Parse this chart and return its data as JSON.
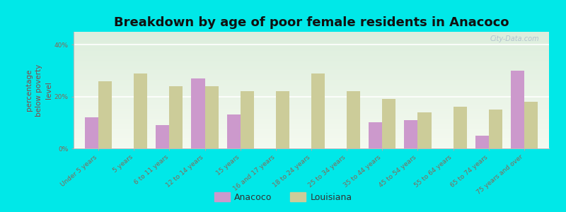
{
  "title": "Breakdown by age of poor female residents in Anacoco",
  "ylabel": "percentage\nbelow poverty\nlevel",
  "categories": [
    "Under 5 years",
    "5 years",
    "6 to 11 years",
    "12 to 14 years",
    "15 years",
    "16 and 17 years",
    "18 to 24 years",
    "25 to 34 years",
    "35 to 44 years",
    "45 to 54 years",
    "55 to 64 years",
    "65 to 74 years",
    "75 years and over"
  ],
  "anacoco_values": [
    12,
    0,
    9,
    27,
    13,
    0,
    0,
    0,
    10,
    11,
    0,
    5,
    30
  ],
  "louisiana_values": [
    26,
    29,
    24,
    24,
    22,
    22,
    29,
    22,
    19,
    14,
    16,
    15,
    18
  ],
  "anacoco_color": "#cc99cc",
  "louisiana_color": "#cccc99",
  "outer_background": "#00e8e8",
  "plot_bg_top": "#ddeedd",
  "plot_bg_bottom": "#f5faf0",
  "ylim": [
    0,
    45
  ],
  "ytick_vals": [
    0,
    20,
    40
  ],
  "ytick_labels": [
    "0%",
    "20%",
    "40%"
  ],
  "bar_width": 0.38,
  "title_fontsize": 13,
  "ylabel_fontsize": 7.5,
  "ylabel_color": "#884444",
  "tick_fontsize": 6.5,
  "tick_color": "#886655",
  "legend_fontsize": 9,
  "watermark": "City-Data.com",
  "watermark_color": "#aabbcc"
}
